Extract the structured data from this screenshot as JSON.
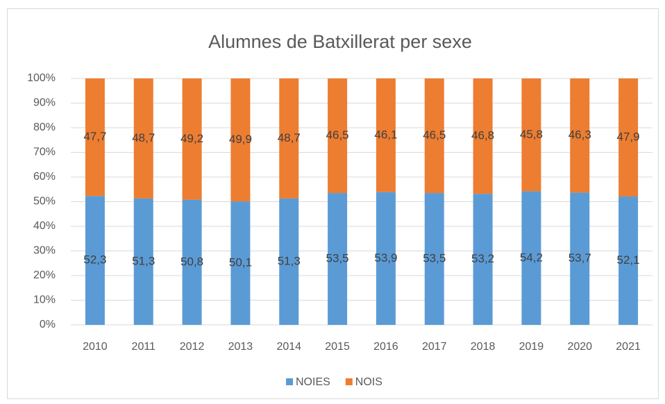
{
  "chart_data": {
    "type": "stacked_bar",
    "title": "Alumnes de Batxillerat per sexe",
    "categories": [
      "2010",
      "2011",
      "2012",
      "2013",
      "2014",
      "2015",
      "2016",
      "2017",
      "2018",
      "2019",
      "2020",
      "2021"
    ],
    "series": [
      {
        "name": "NOIES",
        "color": "#5b9bd5",
        "values": [
          52.3,
          51.3,
          50.8,
          50.1,
          51.3,
          53.5,
          53.9,
          53.5,
          53.2,
          54.2,
          53.7,
          52.1
        ],
        "value_labels": [
          "52,3",
          "51,3",
          "50,8",
          "50,1",
          "51,3",
          "53,5",
          "53,9",
          "53,5",
          "53,2",
          "54,2",
          "53,7",
          "52,1"
        ]
      },
      {
        "name": "NOIS",
        "color": "#ed7d31",
        "values": [
          47.7,
          48.7,
          49.2,
          49.9,
          48.7,
          46.5,
          46.1,
          46.5,
          46.8,
          45.8,
          46.3,
          47.9
        ],
        "value_labels": [
          "47,7",
          "48,7",
          "49,2",
          "49,9",
          "48,7",
          "46,5",
          "46,1",
          "46,5",
          "46,8",
          "45,8",
          "46,3",
          "47,9"
        ]
      }
    ],
    "ylim": [
      0,
      100
    ],
    "yticks": [
      {
        "value": 0,
        "label": "0%"
      },
      {
        "value": 10,
        "label": "10%"
      },
      {
        "value": 20,
        "label": "20%"
      },
      {
        "value": 30,
        "label": "30%"
      },
      {
        "value": 40,
        "label": "40%"
      },
      {
        "value": 50,
        "label": "50%"
      },
      {
        "value": 60,
        "label": "60%"
      },
      {
        "value": 70,
        "label": "70%"
      },
      {
        "value": 80,
        "label": "80%"
      },
      {
        "value": 90,
        "label": "90%"
      },
      {
        "value": 100,
        "label": "100%"
      }
    ],
    "grid": true,
    "legend": "bottom"
  }
}
